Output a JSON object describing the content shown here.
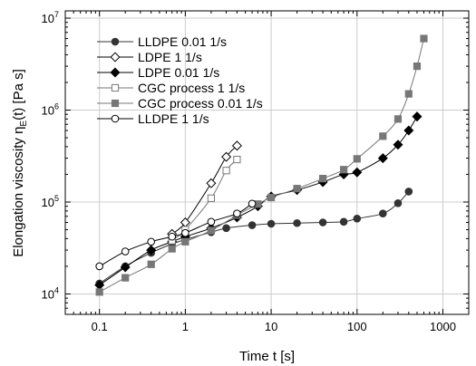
{
  "chart_data": {
    "type": "line",
    "xlabel": "Time t [s]",
    "ylabel_main": "Elongation viscosity η",
    "ylabel_sub": "E",
    "ylabel_tail": "(t) [Pa s]",
    "x_scale": "log",
    "y_scale": "log",
    "xlim": [
      0.04,
      2000
    ],
    "ylim": [
      6000,
      12000000
    ],
    "x_ticks": [
      0.1,
      1,
      10,
      100,
      1000
    ],
    "x_tick_labels": [
      "0.1",
      "1",
      "10",
      "100",
      "1000"
    ],
    "y_ticks": [
      10000,
      100000,
      1000000,
      10000000
    ],
    "y_tick_labels": [
      {
        "base": "10",
        "exp": "4"
      },
      {
        "base": "10",
        "exp": "5"
      },
      {
        "base": "10",
        "exp": "6"
      },
      {
        "base": "10",
        "exp": "7"
      }
    ],
    "grid": true,
    "legend_position": "top-left",
    "series": [
      {
        "name": "LLDPE 0.01 1/s",
        "marker": "circle",
        "filled": true,
        "color": "#333333",
        "x": [
          0.1,
          0.2,
          0.4,
          0.7,
          1,
          2,
          3,
          6,
          10,
          20,
          40,
          70,
          100,
          200,
          300,
          400
        ],
        "y": [
          13000,
          20000,
          28000,
          35000,
          39000,
          47000,
          52000,
          56000,
          58000,
          59000,
          60000,
          61000,
          66000,
          75000,
          97000,
          130000
        ]
      },
      {
        "name": "LDPE 1 1/s",
        "marker": "diamond",
        "filled": false,
        "color": "#000000",
        "x": [
          0.7,
          1,
          2,
          3,
          4
        ],
        "y": [
          45000,
          60000,
          160000,
          310000,
          410000
        ]
      },
      {
        "name": "LDPE 0.01 1/s",
        "marker": "diamond",
        "filled": true,
        "color": "#000000",
        "x": [
          0.1,
          0.2,
          0.4,
          0.7,
          1,
          2,
          4,
          7,
          10,
          20,
          40,
          70,
          100,
          200,
          300,
          400,
          500
        ],
        "y": [
          12500,
          19500,
          30000,
          37000,
          42000,
          52000,
          68000,
          90000,
          115000,
          135000,
          165000,
          200000,
          210000,
          300000,
          420000,
          600000,
          850000
        ]
      },
      {
        "name": "CGC process 1 1/s",
        "marker": "square",
        "filled": false,
        "color": "#777777",
        "x": [
          0.7,
          1,
          2,
          3,
          4
        ],
        "y": [
          38000,
          50000,
          110000,
          220000,
          290000
        ]
      },
      {
        "name": "CGC process 0.01 1/s",
        "marker": "square",
        "filled": true,
        "color": "#777777",
        "x": [
          0.1,
          0.2,
          0.4,
          0.7,
          1,
          2,
          4,
          7,
          10,
          20,
          40,
          70,
          100,
          200,
          300,
          400,
          500,
          600
        ],
        "y": [
          10500,
          15000,
          21000,
          31000,
          37000,
          49000,
          72000,
          95000,
          112000,
          140000,
          180000,
          225000,
          295000,
          520000,
          800000,
          1500000,
          3000000,
          6000000
        ]
      },
      {
        "name": "LLDPE 1 1/s",
        "marker": "circle",
        "filled": false,
        "color": "#000000",
        "x": [
          0.1,
          0.2,
          0.4,
          0.7,
          1,
          2,
          4,
          6
        ],
        "y": [
          20000,
          29000,
          37000,
          42000,
          46000,
          61000,
          75000,
          96000
        ]
      }
    ]
  }
}
